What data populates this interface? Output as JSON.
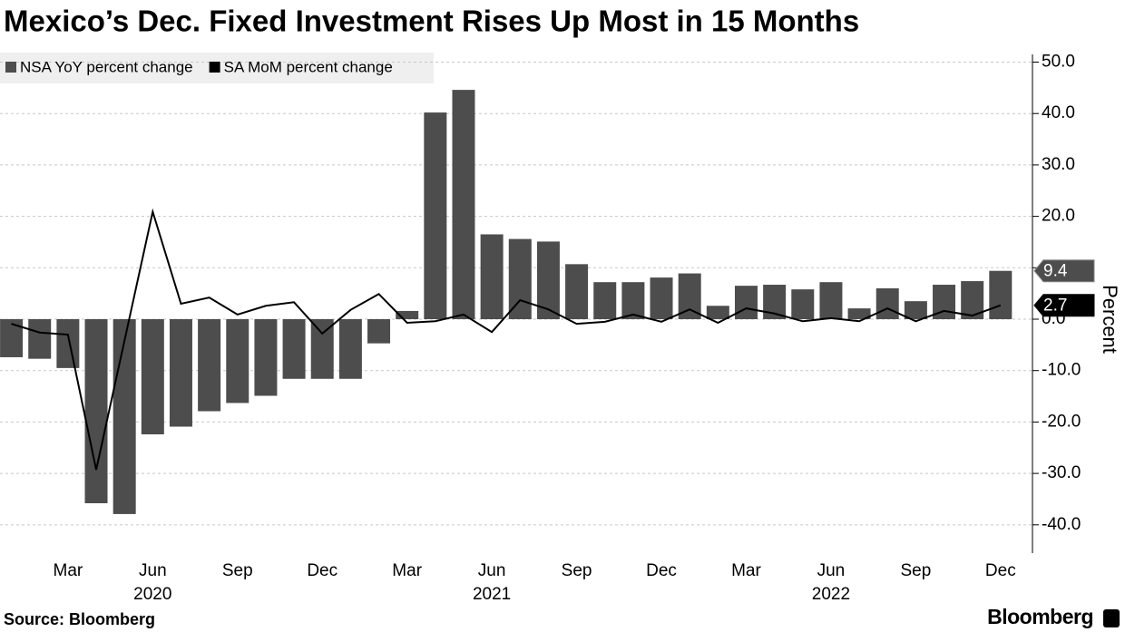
{
  "chart_data": {
    "type": "bar_line",
    "title": "Mexico’s Dec. Fixed Investment Rises Up Most in 15 Months",
    "y_label": "Percent",
    "source": "Source: Bloomberg",
    "brand": "Bloomberg",
    "categories": [
      null,
      null,
      "Mar",
      null,
      null,
      "Jun",
      null,
      null,
      "Sep",
      null,
      null,
      "Dec",
      null,
      null,
      "Mar",
      null,
      null,
      "Jun",
      null,
      null,
      "Sep",
      null,
      null,
      "Dec",
      null,
      null,
      "Mar",
      null,
      null,
      "Jun",
      null,
      null,
      "Sep",
      null,
      null,
      "Dec"
    ],
    "years": [
      "2020",
      "2021",
      "2022"
    ],
    "series": [
      {
        "name": "NSA YoY percent change",
        "color": "#4d4d4d",
        "kind": "bar",
        "values": [
          -7.4,
          -7.7,
          -9.5,
          -35.8,
          -37.9,
          -22.4,
          -20.9,
          -17.9,
          -16.3,
          -14.9,
          -11.6,
          -11.6,
          -11.6,
          -4.7,
          1.6,
          40.2,
          44.6,
          16.5,
          15.6,
          15.1,
          10.7,
          7.2,
          7.2,
          8.1,
          8.9,
          2.6,
          6.5,
          6.7,
          5.8,
          7.2,
          2.1,
          6.0,
          3.5,
          6.7,
          7.4,
          9.4
        ]
      },
      {
        "name": "SA MoM percent change",
        "color": "#000000",
        "kind": "line",
        "values": [
          -0.9,
          -2.6,
          -3.0,
          -29.3,
          -4.2,
          20.9,
          3.0,
          4.2,
          0.9,
          2.6,
          3.3,
          -2.8,
          1.8,
          4.9,
          -0.7,
          -0.4,
          0.9,
          -2.5,
          3.7,
          1.9,
          -0.9,
          -0.5,
          0.9,
          -0.5,
          1.9,
          -0.7,
          2.1,
          1.1,
          -0.4,
          0.2,
          -0.4,
          2.1,
          -0.4,
          1.6,
          0.7,
          2.7
        ]
      }
    ],
    "ylim": [
      -45.5,
      51.5
    ],
    "yticks": [
      {
        "value": 50,
        "label": "50.0"
      },
      {
        "value": 40,
        "label": "40.0"
      },
      {
        "value": 30,
        "label": "30.0"
      },
      {
        "value": 20,
        "label": "20.0"
      },
      {
        "value": 10,
        "label": "10.0"
      },
      {
        "value": 0,
        "label": "0.0"
      },
      {
        "value": -10,
        "label": "-10.0"
      },
      {
        "value": -20,
        "label": "-20.0"
      },
      {
        "value": -30,
        "label": "-30.0"
      },
      {
        "value": -40,
        "label": "-40.0"
      }
    ],
    "grid": true
  }
}
